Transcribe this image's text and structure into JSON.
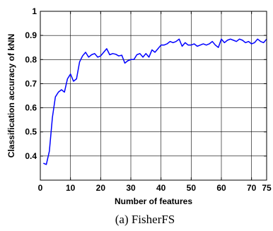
{
  "caption": "(a) FisherFS",
  "chart_data": {
    "type": "line",
    "title": "",
    "xlabel": "Number of features",
    "ylabel": "Classification accuracy of kNN",
    "xlim": [
      0,
      75
    ],
    "ylim": [
      0.3,
      1.0
    ],
    "xticks": [
      0,
      10,
      20,
      30,
      40,
      50,
      60,
      70,
      75
    ],
    "xtick_labels": [
      "0",
      "10",
      "20",
      "30",
      "40",
      "50",
      "60",
      "70",
      "75"
    ],
    "yticks": [
      0.4,
      0.5,
      0.6,
      0.7,
      0.8,
      0.9,
      1.0
    ],
    "ytick_labels": [
      "0.4",
      "0.5",
      "0.6",
      "0.7",
      "0.8",
      "0.9",
      "1"
    ],
    "grid": true,
    "series": [
      {
        "color": "#0000ff",
        "x": [
          1,
          2,
          3,
          4,
          5,
          6,
          7,
          8,
          9,
          10,
          11,
          12,
          13,
          14,
          15,
          16,
          17,
          18,
          19,
          20,
          21,
          22,
          23,
          24,
          25,
          26,
          27,
          28,
          29,
          30,
          31,
          32,
          33,
          34,
          35,
          36,
          37,
          38,
          39,
          40,
          41,
          42,
          43,
          44,
          45,
          46,
          47,
          48,
          49,
          50,
          51,
          52,
          53,
          54,
          55,
          56,
          57,
          58,
          59,
          60,
          61,
          62,
          63,
          64,
          65,
          66,
          67,
          68,
          69,
          70,
          71,
          72,
          73,
          74,
          75
        ],
        "values": [
          0.37,
          0.365,
          0.42,
          0.56,
          0.645,
          0.665,
          0.675,
          0.665,
          0.72,
          0.74,
          0.71,
          0.72,
          0.79,
          0.815,
          0.83,
          0.81,
          0.82,
          0.825,
          0.81,
          0.815,
          0.83,
          0.845,
          0.82,
          0.825,
          0.822,
          0.815,
          0.818,
          0.785,
          0.795,
          0.8,
          0.8,
          0.82,
          0.825,
          0.81,
          0.825,
          0.81,
          0.84,
          0.83,
          0.845,
          0.86,
          0.86,
          0.865,
          0.875,
          0.87,
          0.875,
          0.885,
          0.855,
          0.87,
          0.86,
          0.86,
          0.865,
          0.855,
          0.86,
          0.865,
          0.86,
          0.865,
          0.875,
          0.86,
          0.85,
          0.885,
          0.87,
          0.88,
          0.885,
          0.88,
          0.875,
          0.885,
          0.88,
          0.87,
          0.875,
          0.865,
          0.87,
          0.885,
          0.875,
          0.87,
          0.885
        ]
      }
    ]
  }
}
